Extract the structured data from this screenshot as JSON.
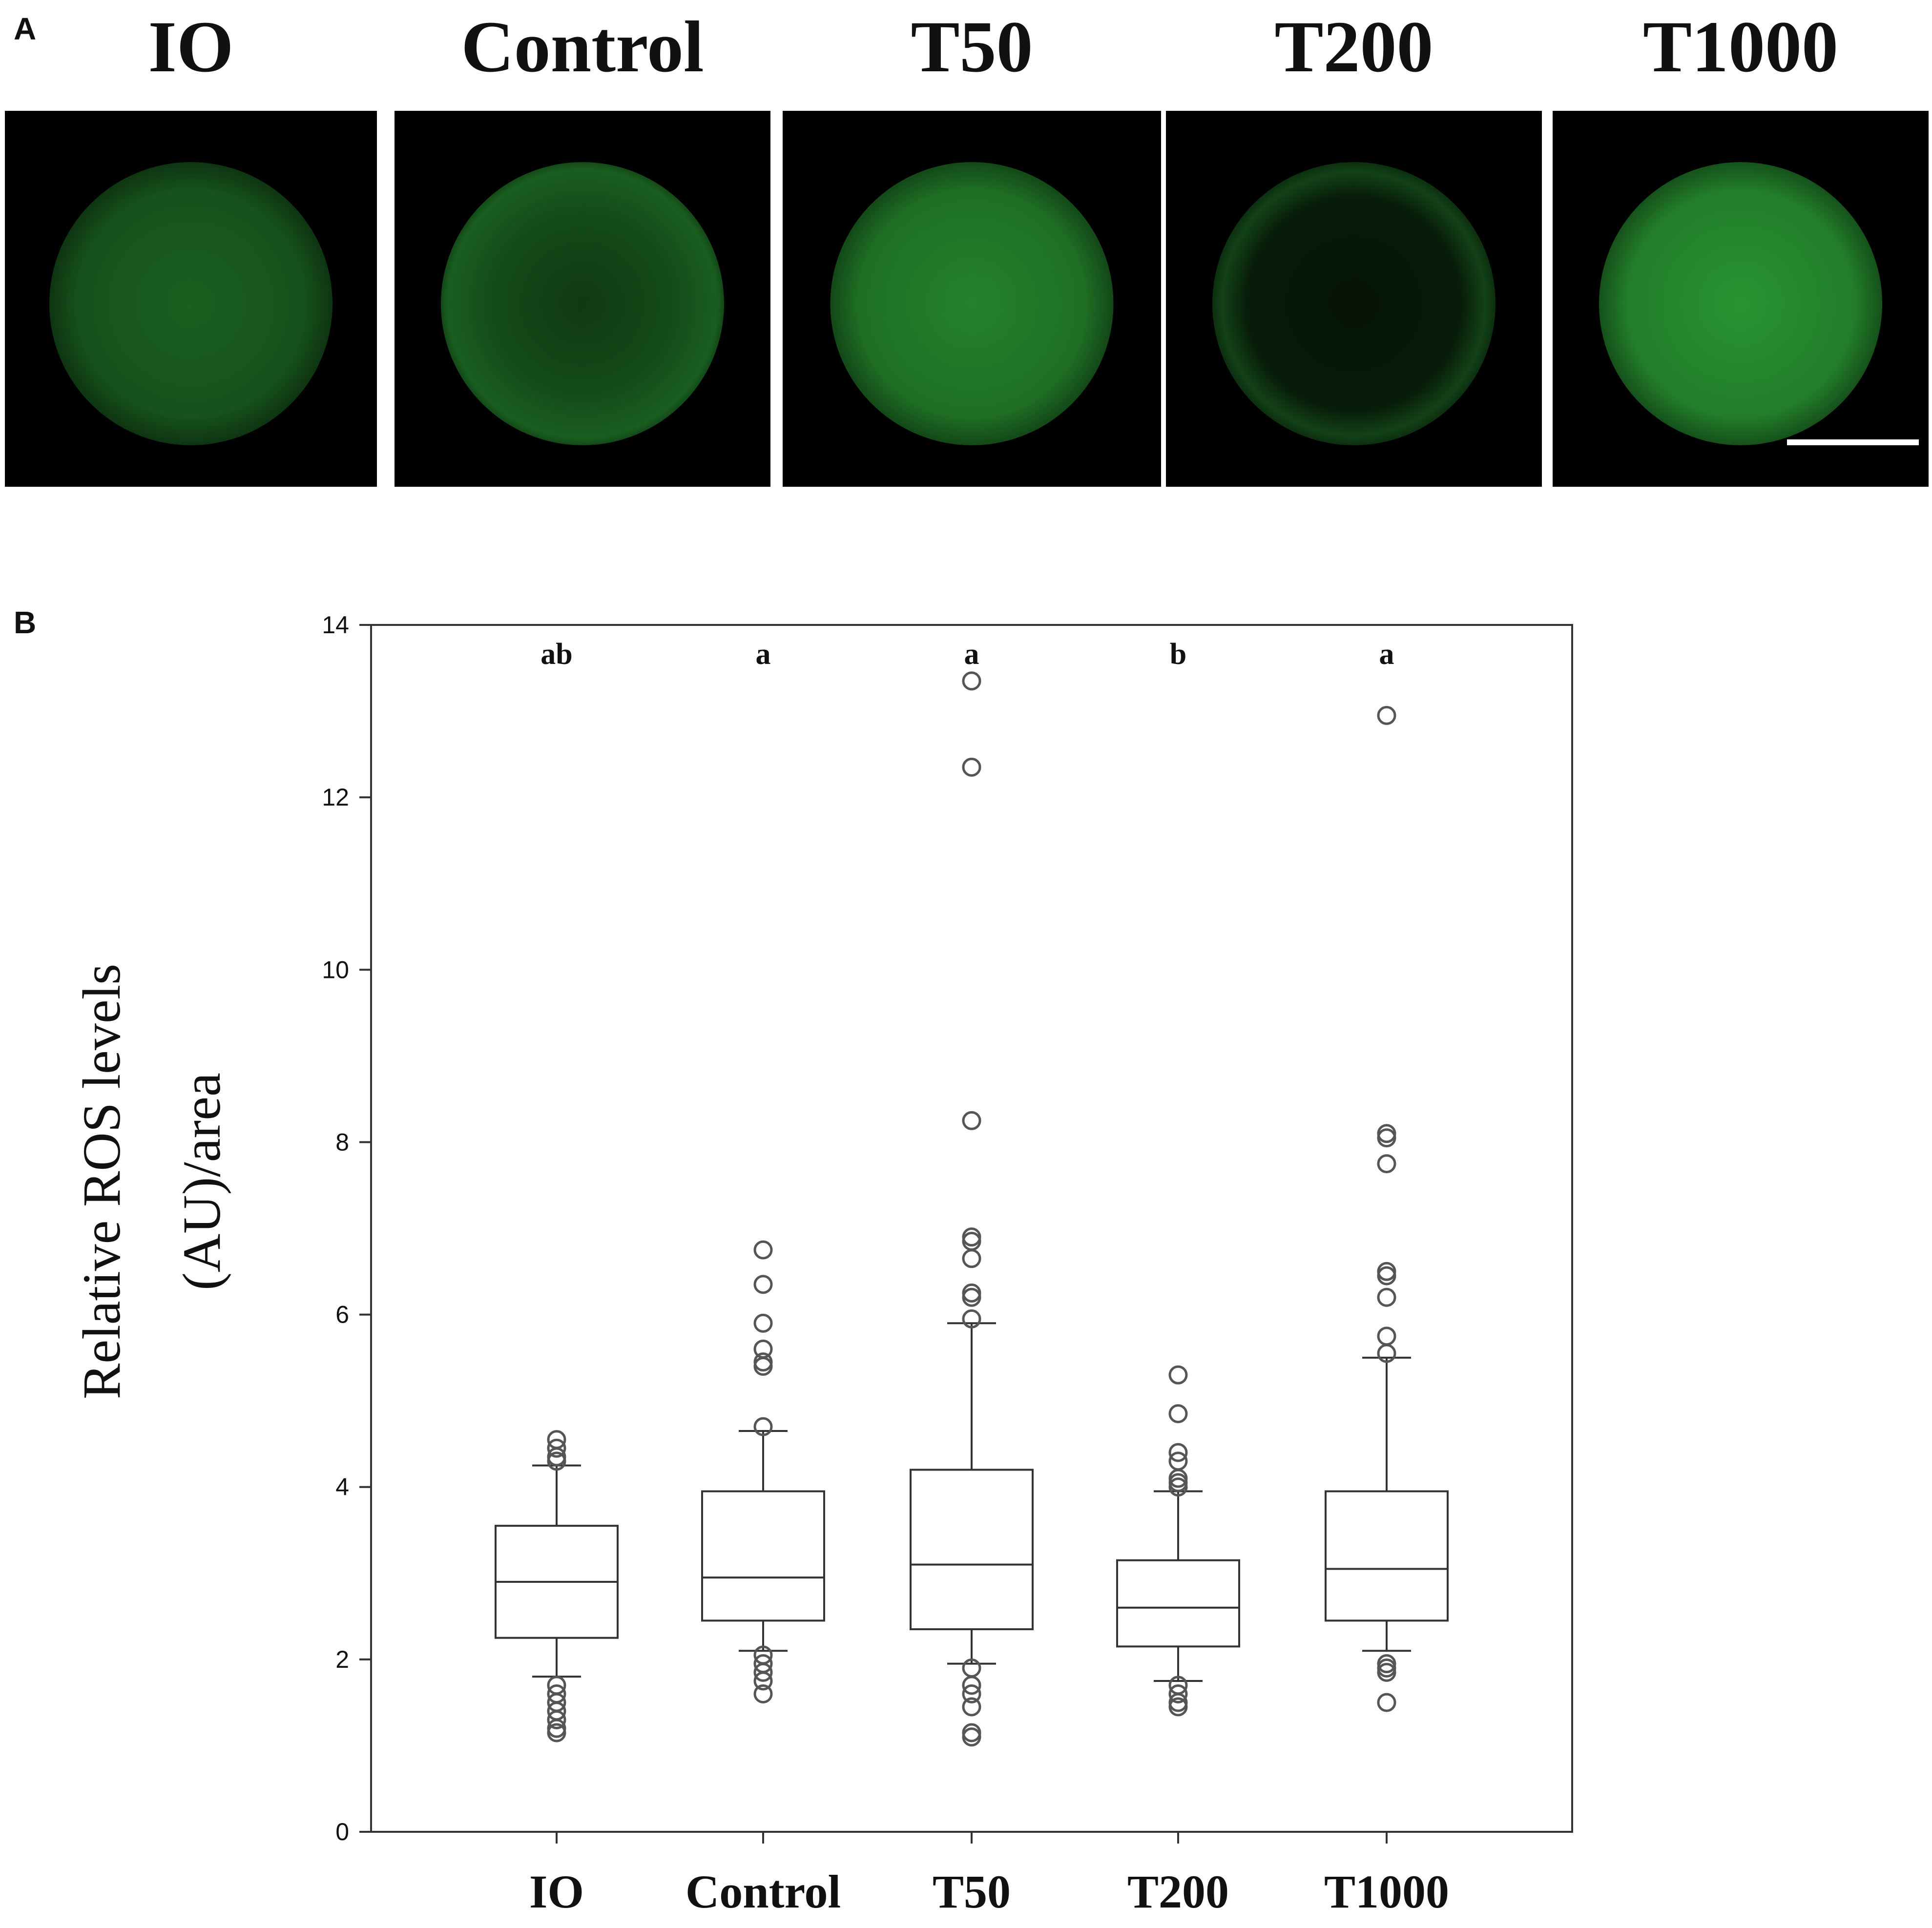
{
  "panel_a": {
    "letter": "A",
    "images": [
      {
        "label": "IO",
        "brightness": 0.55,
        "ring": false,
        "dark_center": false
      },
      {
        "label": "Control",
        "brightness": 0.6,
        "ring": false,
        "dark_center": true
      },
      {
        "label": "T50",
        "brightness": 0.75,
        "ring": false,
        "dark_center": false
      },
      {
        "label": "T200",
        "brightness": 0.45,
        "ring": true,
        "dark_center": true
      },
      {
        "label": "T1000",
        "brightness": 0.85,
        "ring": false,
        "dark_center": false
      }
    ],
    "fluorescence_color": "#2fae3a",
    "scale_bar_color": "#ffffff"
  },
  "panel_b": {
    "letter": "B"
  },
  "chart_data": {
    "type": "box",
    "ylabel": [
      "Relative ROS levels",
      "(AU)/area"
    ],
    "ylim": [
      0,
      14
    ],
    "yticks": [
      0,
      2,
      4,
      6,
      8,
      10,
      12,
      14
    ],
    "categories": [
      "IO",
      "Control",
      "T50",
      "T200",
      "T1000"
    ],
    "significance": [
      "ab",
      "a",
      "a",
      "b",
      "a"
    ],
    "boxes": [
      {
        "name": "IO",
        "q1": 2.25,
        "median": 2.9,
        "q3": 3.55,
        "whisker_low": 1.8,
        "whisker_high": 4.25,
        "outliers": [
          4.3,
          4.35,
          4.45,
          4.55,
          1.7,
          1.6,
          1.5,
          1.4,
          1.3,
          1.2,
          1.15
        ]
      },
      {
        "name": "Control",
        "q1": 2.45,
        "median": 2.95,
        "q3": 3.95,
        "whisker_low": 2.1,
        "whisker_high": 4.65,
        "outliers": [
          4.7,
          5.4,
          5.45,
          5.6,
          5.9,
          6.35,
          6.75,
          2.05,
          1.95,
          1.85,
          1.75,
          1.6
        ]
      },
      {
        "name": "T50",
        "q1": 2.35,
        "median": 3.1,
        "q3": 4.2,
        "whisker_low": 1.95,
        "whisker_high": 5.9,
        "outliers": [
          5.95,
          6.2,
          6.25,
          6.65,
          6.85,
          6.9,
          8.25,
          12.35,
          13.35,
          1.9,
          1.7,
          1.6,
          1.45,
          1.15,
          1.1
        ]
      },
      {
        "name": "T200",
        "q1": 2.15,
        "median": 2.6,
        "q3": 3.15,
        "whisker_low": 1.75,
        "whisker_high": 3.95,
        "outliers": [
          4.0,
          4.05,
          4.1,
          4.3,
          4.4,
          4.85,
          5.3,
          1.7,
          1.6,
          1.5,
          1.45
        ]
      },
      {
        "name": "T1000",
        "q1": 2.45,
        "median": 3.05,
        "q3": 3.95,
        "whisker_low": 2.1,
        "whisker_high": 5.5,
        "outliers": [
          5.55,
          5.75,
          6.2,
          6.45,
          6.5,
          7.75,
          8.05,
          8.1,
          12.95,
          1.95,
          1.9,
          1.85,
          1.5
        ]
      }
    ],
    "grid": false,
    "legend": "none"
  }
}
